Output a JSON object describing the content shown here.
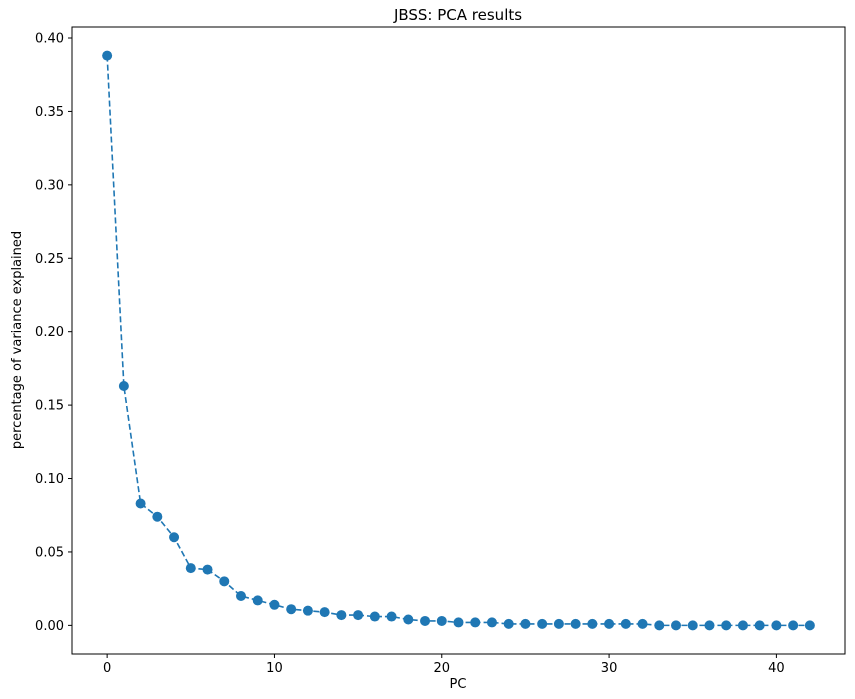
{
  "chart_data": {
    "type": "line",
    "title": "JBSS: PCA results",
    "xlabel": "PC",
    "ylabel": "percentage of variance explained",
    "xlim": [
      -2.1,
      44.1
    ],
    "ylim": [
      -0.0195,
      0.4075
    ],
    "x_ticks": [
      0,
      10,
      20,
      30,
      40
    ],
    "y_ticks": [
      0.0,
      0.05,
      0.1,
      0.15,
      0.2,
      0.25,
      0.3,
      0.35,
      0.4
    ],
    "x_tick_labels": [
      "0",
      "10",
      "20",
      "30",
      "40"
    ],
    "y_tick_labels": [
      "0.00",
      "0.05",
      "0.10",
      "0.15",
      "0.20",
      "0.25",
      "0.30",
      "0.35",
      "0.40"
    ],
    "grid": false,
    "line_style": "dashed",
    "marker": "circle",
    "color": "#1f77b4",
    "series": [
      {
        "x": [
          0,
          1,
          2,
          3,
          4,
          5,
          6,
          7,
          8,
          9,
          10,
          11,
          12,
          13,
          14,
          15,
          16,
          17,
          18,
          19,
          20,
          21,
          22,
          23,
          24,
          25,
          26,
          27,
          28,
          29,
          30,
          31,
          32,
          33,
          34,
          35,
          36,
          37,
          38,
          39,
          40,
          41,
          42
        ],
        "values": [
          0.388,
          0.163,
          0.083,
          0.074,
          0.06,
          0.039,
          0.038,
          0.03,
          0.02,
          0.017,
          0.014,
          0.011,
          0.01,
          0.009,
          0.007,
          0.007,
          0.006,
          0.006,
          0.004,
          0.003,
          0.003,
          0.002,
          0.002,
          0.002,
          0.001,
          0.001,
          0.001,
          0.001,
          0.001,
          0.001,
          0.001,
          0.001,
          0.001,
          0.0,
          0.0,
          0.0,
          0.0,
          0.0,
          0.0,
          0.0,
          0.0,
          0.0,
          0.0
        ]
      }
    ]
  }
}
